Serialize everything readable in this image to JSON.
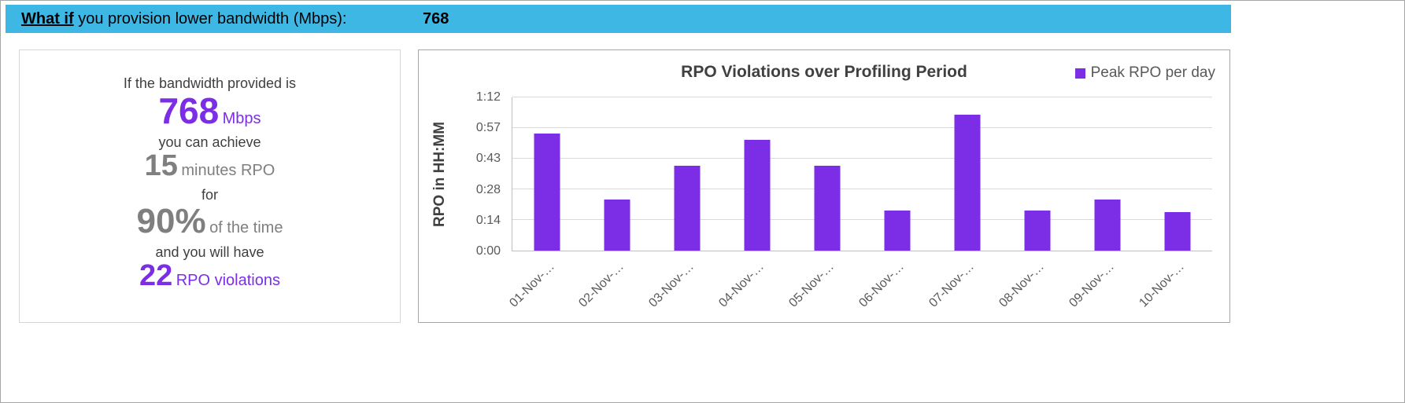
{
  "header": {
    "prefix_bold": "What if",
    "prefix_rest": " you provision lower bandwidth (Mbps):",
    "value": "768"
  },
  "summary_card": {
    "line1": "If the bandwidth provided is",
    "bandwidth_value": "768",
    "bandwidth_unit": "Mbps",
    "line2": "you can achieve",
    "rpo_value": "15",
    "rpo_unit": "minutes RPO",
    "line3": "for",
    "percent_value": "90%",
    "percent_unit": "of the time",
    "line4": "and you will have",
    "violations_value": "22",
    "violations_unit": "RPO violations"
  },
  "chart_data": {
    "type": "bar",
    "title": "RPO Violations over Profiling Period",
    "ylabel": "RPO in HH:MM",
    "xlabel": "",
    "legend": [
      {
        "label": "Peak RPO per day",
        "color": "#7c2ee6"
      }
    ],
    "legend_position": "top-right",
    "grid": true,
    "bar_color": "#7c2ee6",
    "ylim": [
      0,
      72
    ],
    "yticks": [
      {
        "minutes": 0,
        "label": "0:00"
      },
      {
        "minutes": 14.4,
        "label": "0:14"
      },
      {
        "minutes": 28.8,
        "label": "0:28"
      },
      {
        "minutes": 43.2,
        "label": "0:43"
      },
      {
        "minutes": 57.6,
        "label": "0:57"
      },
      {
        "minutes": 72,
        "label": "1:12"
      }
    ],
    "categories": [
      "01-Nov-…",
      "02-Nov-…",
      "03-Nov-…",
      "04-Nov-…",
      "05-Nov-…",
      "06-Nov-…",
      "07-Nov-…",
      "08-Nov-…",
      "09-Nov-…",
      "10-Nov-…"
    ],
    "values_minutes": [
      55,
      24,
      40,
      52,
      40,
      19,
      64,
      19,
      24,
      18
    ]
  },
  "colors": {
    "header_blue": "#3fb7e5",
    "accent_purple": "#7c2ee6",
    "muted_gray": "#7f7f7f"
  }
}
